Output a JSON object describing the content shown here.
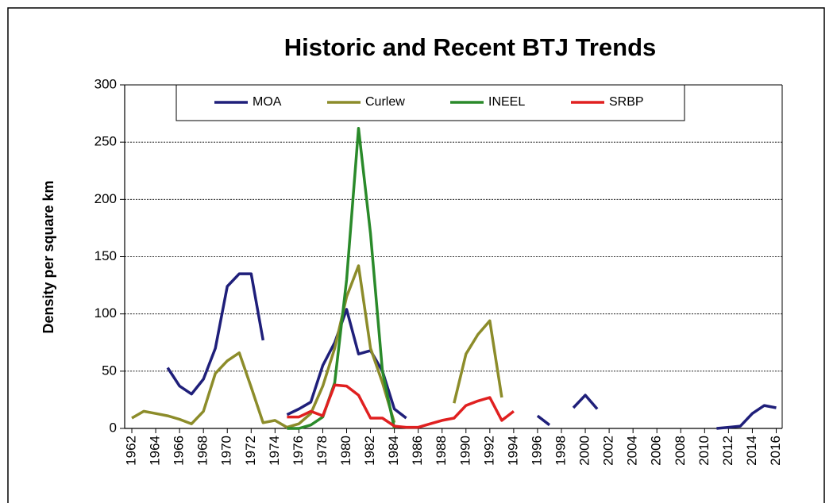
{
  "chart_data": {
    "type": "line",
    "title": "Historic and Recent BTJ Trends",
    "y_label": "Density per square km",
    "x": [
      1962,
      1963,
      1964,
      1965,
      1966,
      1967,
      1968,
      1969,
      1970,
      1971,
      1972,
      1973,
      1974,
      1975,
      1976,
      1977,
      1978,
      1979,
      1980,
      1981,
      1982,
      1983,
      1984,
      1985,
      1986,
      1987,
      1988,
      1989,
      1990,
      1991,
      1992,
      1993,
      1994,
      1995,
      1996,
      1997,
      1998,
      1999,
      2000,
      2001,
      2002,
      2003,
      2004,
      2005,
      2006,
      2007,
      2008,
      2009,
      2010,
      2011,
      2012,
      2013,
      2014,
      2015,
      2016
    ],
    "series": [
      {
        "name": "MOA",
        "color": "#1f1f7a",
        "values": [
          null,
          null,
          null,
          53,
          37,
          30,
          43,
          70,
          124,
          135,
          135,
          77,
          null,
          12,
          17,
          23,
          55,
          75,
          104,
          65,
          68,
          50,
          17,
          9,
          null,
          null,
          null,
          null,
          null,
          null,
          null,
          null,
          null,
          null,
          11,
          3,
          null,
          18,
          29,
          17,
          null,
          null,
          null,
          null,
          null,
          null,
          null,
          null,
          null,
          0,
          1,
          2,
          13,
          20,
          18
        ]
      },
      {
        "name": "Curlew",
        "color": "#8c8c2a",
        "values": [
          9,
          15,
          13,
          11,
          8,
          4,
          15,
          48,
          59,
          66,
          36,
          5,
          7,
          1,
          4,
          13,
          37,
          70,
          115,
          142,
          70,
          40,
          5,
          null,
          null,
          null,
          null,
          22,
          65,
          82,
          94,
          27,
          null,
          null,
          null,
          null,
          null,
          null,
          null,
          null,
          null,
          null,
          null,
          null,
          null,
          null,
          null,
          null,
          null,
          null,
          null,
          null,
          null,
          null,
          null
        ]
      },
      {
        "name": "INEEL",
        "color": "#2a8a2a",
        "values": [
          null,
          null,
          null,
          null,
          null,
          null,
          null,
          null,
          null,
          null,
          null,
          null,
          null,
          0,
          0,
          3,
          10,
          40,
          130,
          262,
          170,
          50,
          0,
          null,
          null,
          null,
          null,
          null,
          null,
          null,
          null,
          null,
          null,
          null,
          null,
          null,
          null,
          null,
          null,
          null,
          null,
          null,
          null,
          null,
          null,
          null,
          null,
          null,
          null,
          null,
          null,
          null,
          null,
          null,
          null
        ]
      },
      {
        "name": "SRBP",
        "color": "#e02020",
        "values": [
          null,
          null,
          null,
          null,
          null,
          null,
          null,
          null,
          null,
          null,
          null,
          null,
          null,
          10,
          10,
          15,
          11,
          38,
          37,
          29,
          9,
          9,
          2,
          1,
          1,
          4,
          7,
          9,
          20,
          24,
          27,
          7,
          15,
          null,
          null,
          null,
          null,
          null,
          null,
          null,
          null,
          null,
          null,
          null,
          null,
          null,
          null,
          null,
          null,
          null,
          null,
          null,
          null,
          null,
          null
        ]
      }
    ],
    "xlim": [
      1961.4,
      2016.5
    ],
    "xticks": [
      1962,
      1964,
      1966,
      1968,
      1970,
      1972,
      1974,
      1976,
      1978,
      1980,
      1982,
      1984,
      1986,
      1988,
      1990,
      1992,
      1994,
      1996,
      1998,
      2000,
      2002,
      2004,
      2006,
      2008,
      2010,
      2012,
      2014,
      2016
    ],
    "ylim": [
      0,
      300
    ],
    "yticks": [
      0,
      50,
      100,
      150,
      200,
      250,
      300
    ],
    "grid": true,
    "legend": "top"
  }
}
